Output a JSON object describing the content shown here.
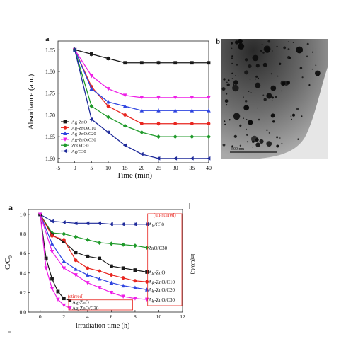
{
  "colors": {
    "Ag-ZnO": "#1a1a1a",
    "Ag-ZnO/C10": "#e8251f",
    "Ag-ZnO/C20": "#2f45e0",
    "Ag-ZnO/C30": "#ee1fe6",
    "ZnO/C30": "#1f9a2a",
    "Ag/C30": "#1e2a9a",
    "annotation": "#e8251f"
  },
  "chart_data": [
    {
      "type": "line",
      "panel_letter": "a",
      "xlabel": "Time (min)",
      "ylabel": "Absorbance (a.u.)",
      "xlim": [
        -5,
        40
      ],
      "ylim": [
        1.59,
        1.87
      ],
      "xticks": [
        "-5",
        "0",
        "5",
        "10",
        "15",
        "20",
        "25",
        "30",
        "35",
        "40"
      ],
      "yticks": [
        "1.60",
        "1.65",
        "1.70",
        "1.75",
        "1.80",
        "1.85"
      ],
      "legend_position": "bottom-left",
      "x": [
        0,
        5,
        10,
        15,
        20,
        25,
        30,
        35,
        40
      ],
      "series": [
        {
          "name": "Ag-ZnO",
          "values": [
            1.85,
            1.84,
            1.83,
            1.82,
            1.82,
            1.82,
            1.82,
            1.82,
            1.82
          ]
        },
        {
          "name": "Ag-ZnO/C10",
          "values": [
            1.85,
            1.765,
            1.72,
            1.7,
            1.68,
            1.68,
            1.68,
            1.68,
            1.68
          ]
        },
        {
          "name": "Ag-ZnO/C20",
          "values": [
            1.85,
            1.76,
            1.73,
            1.72,
            1.71,
            1.71,
            1.71,
            1.71,
            1.71
          ]
        },
        {
          "name": "Ag-ZnO/C30",
          "values": [
            1.85,
            1.79,
            1.76,
            1.745,
            1.74,
            1.74,
            1.74,
            1.74,
            1.74
          ]
        },
        {
          "name": "ZnO/C30",
          "values": [
            1.85,
            1.72,
            1.695,
            1.675,
            1.66,
            1.65,
            1.65,
            1.65,
            1.65
          ]
        },
        {
          "name": "Ag/C30",
          "values": [
            1.85,
            1.69,
            1.66,
            1.63,
            1.61,
            1.6,
            1.6,
            1.6,
            1.6
          ]
        }
      ]
    },
    {
      "type": "line",
      "panel_letter": "a",
      "xlabel": "Irradiation time (h)",
      "ylabel": "C/C0",
      "right_axis_label": "ln(C0/C)",
      "xlim": [
        -1,
        12
      ],
      "ylim": [
        0,
        1.05
      ],
      "xticks": [
        "0",
        "2",
        "4",
        "6",
        "8",
        "10",
        "12"
      ],
      "yticks": [
        "0.0",
        "0.2",
        "0.4",
        "0.6",
        "0.8",
        "1.0"
      ],
      "annotations": [
        "(un-stirred)",
        "(stirred)"
      ],
      "stirred_labels": [
        "Ag-ZnO",
        "Ag-ZnO/C30"
      ],
      "series": [
        {
          "name": "Ag/C30",
          "x": [
            0,
            1,
            2,
            3,
            4,
            5,
            6,
            7,
            8,
            9
          ],
          "values": [
            1.0,
            0.93,
            0.92,
            0.91,
            0.91,
            0.91,
            0.9,
            0.9,
            0.9,
            0.9
          ]
        },
        {
          "name": "ZnO/C30",
          "x": [
            0,
            1,
            2,
            3,
            4,
            5,
            6,
            7,
            8,
            9
          ],
          "values": [
            1.0,
            0.81,
            0.8,
            0.77,
            0.74,
            0.71,
            0.7,
            0.69,
            0.68,
            0.66
          ]
        },
        {
          "name": "Ag-ZnO",
          "x": [
            0,
            1,
            2,
            3,
            4,
            5,
            6,
            7,
            8,
            9
          ],
          "values": [
            1.0,
            0.79,
            0.72,
            0.61,
            0.57,
            0.55,
            0.47,
            0.45,
            0.43,
            0.41
          ]
        },
        {
          "name": "Ag-ZnO/C10",
          "x": [
            0,
            1,
            2,
            3,
            4,
            5,
            6,
            7,
            8,
            9
          ],
          "values": [
            1.0,
            0.78,
            0.74,
            0.53,
            0.45,
            0.42,
            0.38,
            0.35,
            0.32,
            0.31
          ]
        },
        {
          "name": "Ag-ZnO/C20",
          "x": [
            0,
            1,
            2,
            3,
            4,
            5,
            6,
            7,
            8,
            9
          ],
          "values": [
            1.0,
            0.7,
            0.52,
            0.44,
            0.38,
            0.34,
            0.3,
            0.27,
            0.25,
            0.23
          ]
        },
        {
          "name": "Ag-ZnO/C30",
          "x": [
            0,
            1,
            2,
            3,
            4,
            5,
            6,
            7,
            8,
            9
          ],
          "values": [
            1.0,
            0.62,
            0.45,
            0.38,
            0.3,
            0.25,
            0.2,
            0.16,
            0.14,
            0.13
          ]
        },
        {
          "name": "Ag-ZnO (stirred)",
          "x": [
            0,
            0.5,
            1,
            1.5,
            2,
            2.5
          ],
          "values": [
            1.0,
            0.55,
            0.34,
            0.21,
            0.14,
            0.12
          ]
        },
        {
          "name": "Ag-ZnO/C30 (stirred)",
          "x": [
            0,
            0.5,
            1,
            1.5,
            2,
            2.5
          ],
          "values": [
            1.0,
            0.45,
            0.24,
            0.13,
            0.07,
            0.04
          ]
        }
      ]
    }
  ],
  "tem": {
    "panel_letter": "b",
    "scale_bar_label": "500 nm"
  }
}
